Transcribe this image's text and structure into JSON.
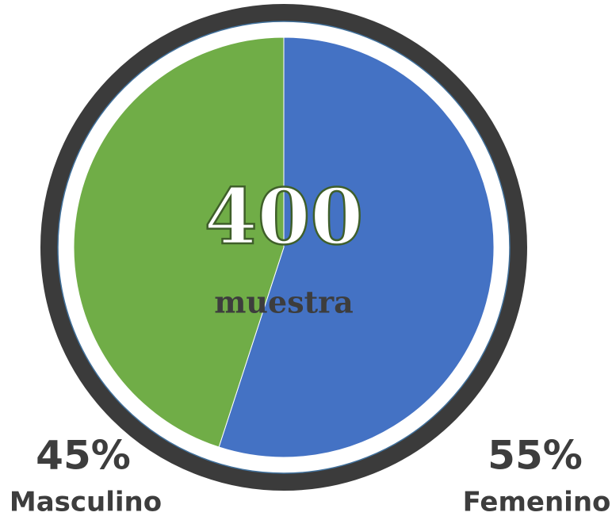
{
  "chart_data": {
    "type": "pie",
    "categories": [
      "Femenino",
      "Masculino"
    ],
    "values": [
      55,
      45
    ],
    "value_labels": [
      "55%",
      "45%"
    ],
    "colors": [
      "#4472c4",
      "#70ad47"
    ],
    "center_value": 400,
    "center_label": "muestra"
  }
}
